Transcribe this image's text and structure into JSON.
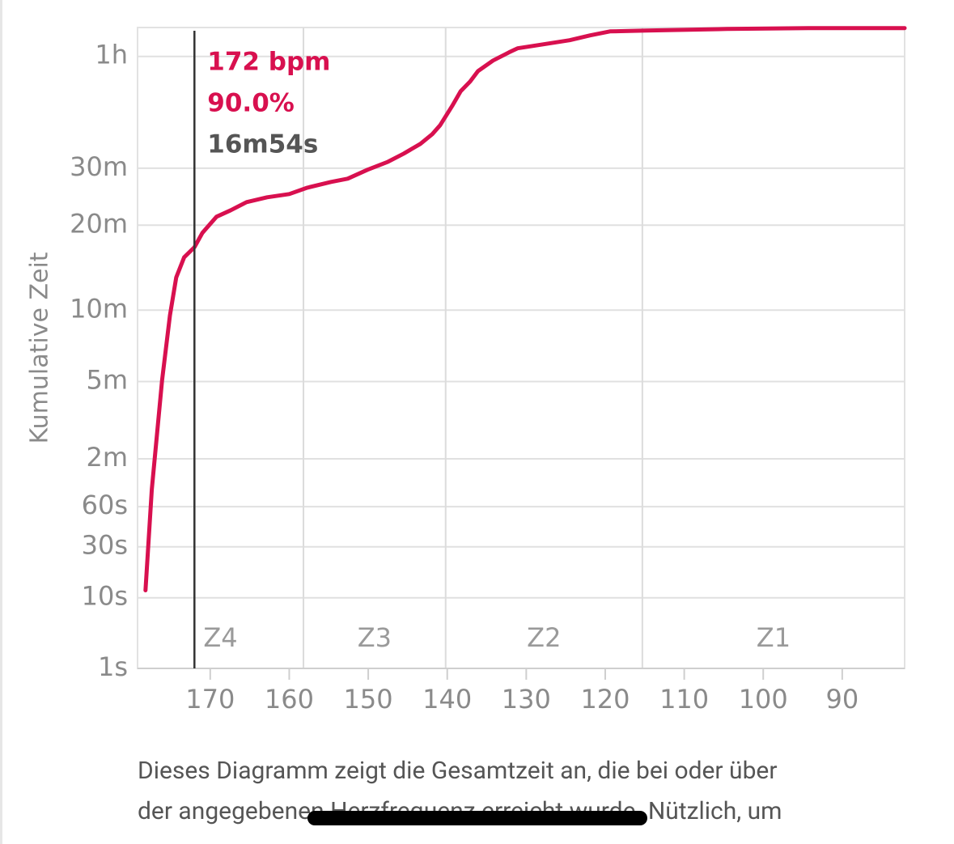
{
  "chart_data": {
    "type": "line",
    "y_label": "Kumulative Zeit",
    "yscale": "pow",
    "exponent": 0.25,
    "ylim": [
      1,
      4230
    ],
    "yticks": [
      {
        "value": 1,
        "label": "1s"
      },
      {
        "value": 10,
        "label": "10s"
      },
      {
        "value": 30,
        "label": "30s"
      },
      {
        "value": 60,
        "label": "60s"
      },
      {
        "value": 120,
        "label": "2m"
      },
      {
        "value": 300,
        "label": "5m"
      },
      {
        "value": 600,
        "label": "10m"
      },
      {
        "value": 1200,
        "label": "20m"
      },
      {
        "value": 1800,
        "label": "30m"
      },
      {
        "value": 3600,
        "label": "1h"
      }
    ],
    "xlim": [
      179.2,
      82.1
    ],
    "xticks": [
      170,
      160,
      150,
      140,
      130,
      120,
      110,
      100,
      90
    ],
    "grid": true,
    "color": "#d8104f",
    "x": [
      178.2,
      177.4,
      176.1,
      175.1,
      174.3,
      173.3,
      172.0,
      171.0,
      169.2,
      167.4,
      165.4,
      162.8,
      160.0,
      157.7,
      154.7,
      152.6,
      150.1,
      147.5,
      145.5,
      143.4,
      141.9,
      140.9,
      139.3,
      138.3,
      137.1,
      136.1,
      134.2,
      132.2,
      131.1,
      129.1,
      124.5,
      121.9,
      119.4,
      114.8,
      104.6,
      94.3,
      82.1
    ],
    "values": [
      12,
      78,
      304,
      572,
      795,
      937,
      1014,
      1132,
      1278,
      1340,
      1421,
      1471,
      1505,
      1575,
      1639,
      1676,
      1781,
      1880,
      1985,
      2116,
      2252,
      2383,
      2702,
      2938,
      3112,
      3310,
      3517,
      3682,
      3769,
      3821,
      3943,
      4051,
      4141,
      4160,
      4197,
      4216,
      4216
    ],
    "zones": [
      {
        "label": "Z4",
        "from": 179.2,
        "to": 158.2
      },
      {
        "label": "Z3",
        "from": 158.2,
        "to": 140.2
      },
      {
        "label": "Z2",
        "from": 140.2,
        "to": 115.3
      },
      {
        "label": "Z1",
        "from": 115.3,
        "to": 82.1
      }
    ],
    "cursor": {
      "x": 172,
      "labels": [
        "172 bpm",
        "90.0%",
        "16m54s"
      ]
    }
  },
  "caption": [
    "Dieses Diagramm zeigt die Gesamtzeit an, die bei oder über",
    "der angegebenen Herzfrequenz erreicht wurde. Nützlich, um"
  ]
}
